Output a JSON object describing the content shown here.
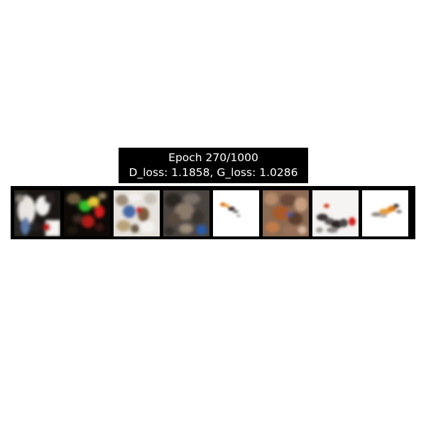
{
  "title": {
    "line1": "Epoch 270/1000",
    "line2": "D_loss: 1.1858, G_loss: 1.0286"
  },
  "samples": [
    {
      "name": "generated-sample-1"
    },
    {
      "name": "generated-sample-2"
    },
    {
      "name": "generated-sample-3"
    },
    {
      "name": "generated-sample-4"
    },
    {
      "name": "generated-sample-5"
    },
    {
      "name": "generated-sample-6"
    },
    {
      "name": "generated-sample-7"
    },
    {
      "name": "generated-sample-8"
    }
  ]
}
